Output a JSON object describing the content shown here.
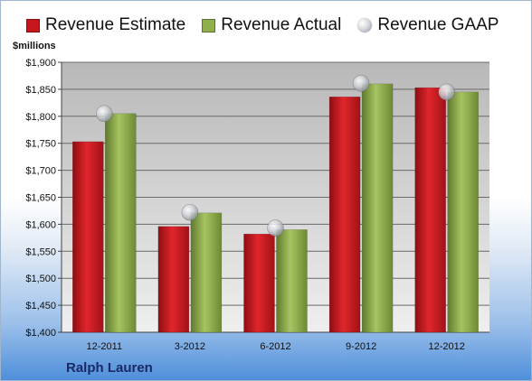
{
  "chart_data": {
    "type": "bar",
    "units_label": "$millions",
    "company": "Ralph Lauren",
    "categories": [
      "12-2011",
      "3-2012",
      "6-2012",
      "9-2012",
      "12-2012"
    ],
    "series": [
      {
        "name": "Revenue Estimate",
        "kind": "bar",
        "color": "#c8161d",
        "values": [
          1753,
          1596,
          1582,
          1836,
          1853
        ]
      },
      {
        "name": "Revenue Actual",
        "kind": "bar",
        "color": "#8fae4c",
        "values": [
          1805,
          1621,
          1590,
          1860,
          1845
        ]
      },
      {
        "name": "Revenue GAAP",
        "kind": "marker",
        "color": "#b9bdc3",
        "values": [
          1805,
          1622,
          1593,
          1861,
          1845
        ]
      }
    ],
    "ylim": [
      1400,
      1900
    ],
    "ytick_step": 50,
    "ytick_labels": [
      "$1,400",
      "$1,450",
      "$1,500",
      "$1,550",
      "$1,600",
      "$1,650",
      "$1,700",
      "$1,750",
      "$1,800",
      "$1,850",
      "$1,900"
    ],
    "grid": true,
    "legend_position": "top"
  }
}
